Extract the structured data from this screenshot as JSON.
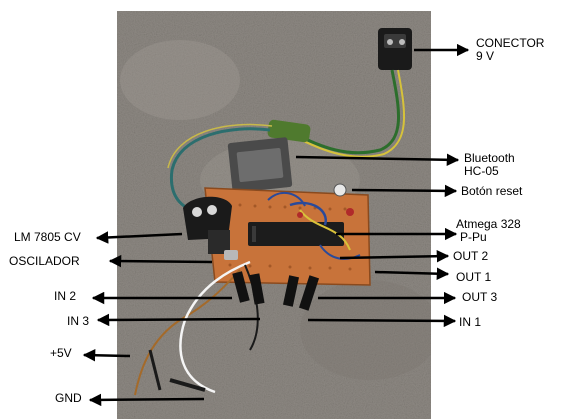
{
  "labels": {
    "conector": [
      "CONECTOR",
      "9 V"
    ],
    "bluetooth": [
      "Bluetooth",
      "HC-05"
    ],
    "reset": "Botón reset",
    "atmega": [
      "Atmega 328",
      "P-Pu"
    ],
    "out2": "OUT 2",
    "out1": "OUT 1",
    "out3": "OUT 3",
    "in1": "IN 1",
    "lm7805": "LM 7805 CV",
    "oscilador": "OSCILADOR",
    "in2": "IN 2",
    "in3": "IN 3",
    "plus5v": "+5V",
    "gnd": "GND"
  },
  "colors": {
    "concrete": "#8f8a84",
    "pcb": "#c8733a",
    "arrow": "#000000"
  }
}
